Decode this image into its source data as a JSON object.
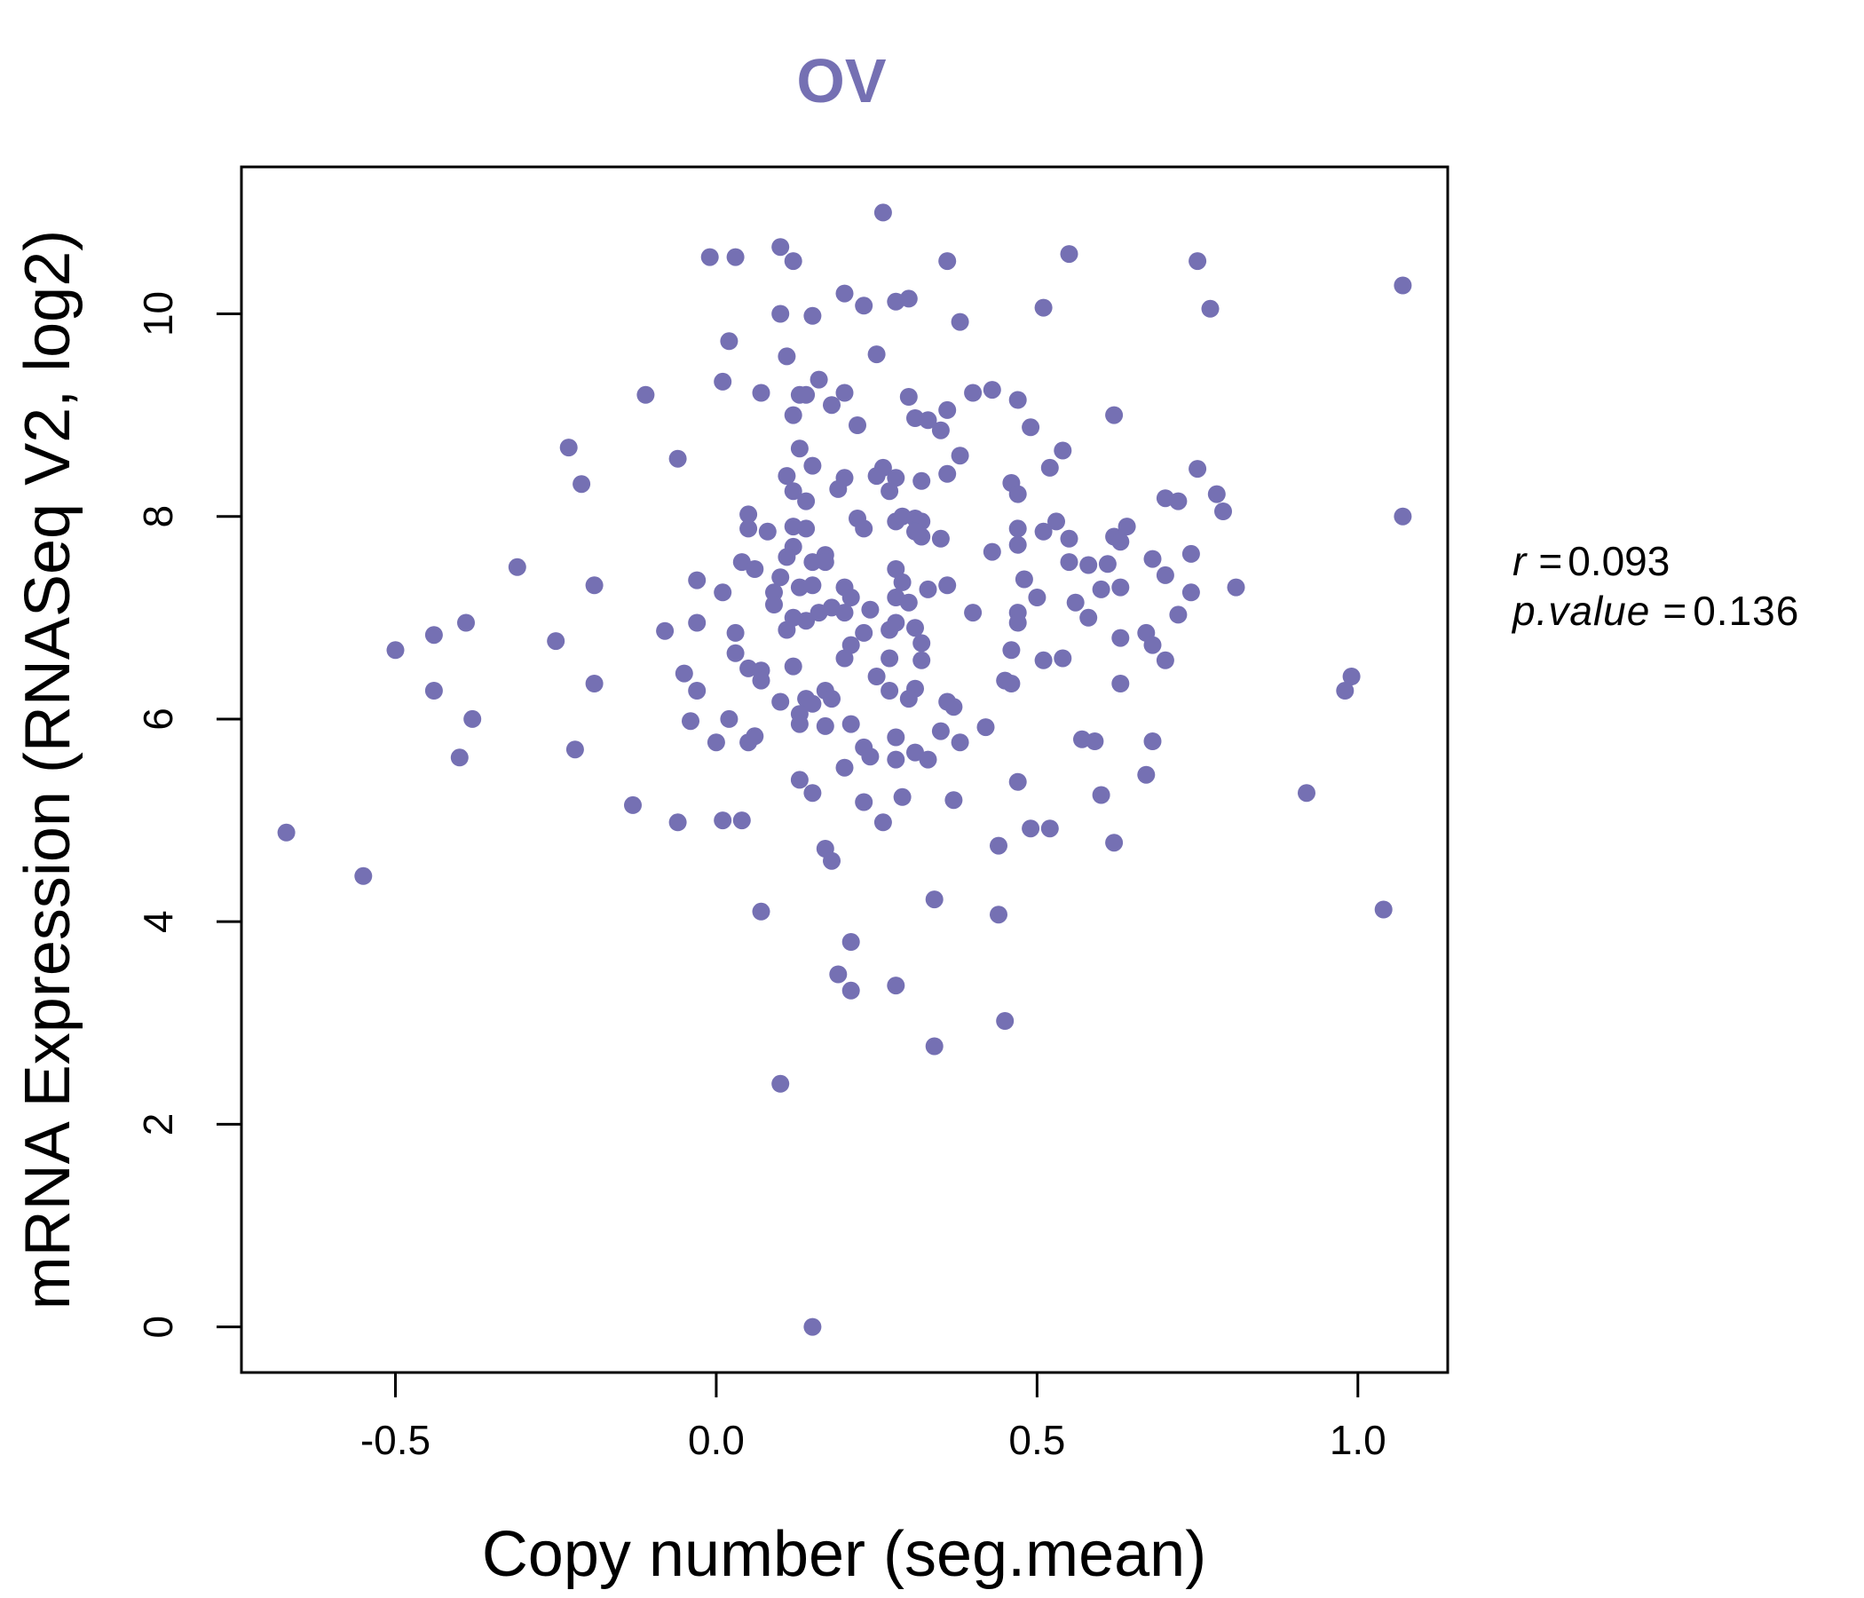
{
  "chart_data": {
    "type": "scatter",
    "title": "OV",
    "xlabel": "Copy number (seg.mean)",
    "ylabel": "mRNA Expression (RNASeq V2, log2)",
    "xlim": [
      -0.74,
      1.14
    ],
    "ylim": [
      -0.45,
      11.45
    ],
    "xticks": [
      -0.5,
      0.0,
      0.5,
      1.0
    ],
    "xtick_labels": [
      "-0.5",
      "0.0",
      "0.5",
      "1.0"
    ],
    "yticks": [
      0,
      2,
      4,
      6,
      8,
      10
    ],
    "ytick_labels": [
      "0",
      "2",
      "4",
      "6",
      "8",
      "10"
    ],
    "grid": false,
    "point_color": "#7570b3",
    "stats": {
      "r_symbol": "r",
      "r_value": "0.093",
      "p_symbol": "p.value",
      "p_value": "0.136"
    },
    "points": [
      [
        0.26,
        11.0
      ],
      [
        0.1,
        10.66
      ],
      [
        -0.01,
        10.56
      ],
      [
        0.03,
        10.56
      ],
      [
        0.12,
        10.52
      ],
      [
        0.36,
        10.52
      ],
      [
        0.55,
        10.59
      ],
      [
        0.75,
        10.52
      ],
      [
        1.07,
        10.28
      ],
      [
        0.2,
        10.2
      ],
      [
        0.28,
        10.12
      ],
      [
        0.3,
        10.15
      ],
      [
        0.23,
        10.08
      ],
      [
        0.51,
        10.06
      ],
      [
        0.77,
        10.05
      ],
      [
        0.1,
        10.0
      ],
      [
        0.15,
        9.98
      ],
      [
        0.38,
        9.92
      ],
      [
        0.02,
        9.73
      ],
      [
        0.25,
        9.6
      ],
      [
        0.11,
        9.58
      ],
      [
        0.01,
        9.33
      ],
      [
        0.16,
        9.35
      ],
      [
        -0.11,
        9.2
      ],
      [
        0.07,
        9.22
      ],
      [
        0.13,
        9.2
      ],
      [
        0.14,
        9.2
      ],
      [
        0.2,
        9.22
      ],
      [
        0.18,
        9.1
      ],
      [
        0.3,
        9.18
      ],
      [
        0.4,
        9.22
      ],
      [
        0.43,
        9.25
      ],
      [
        0.47,
        9.15
      ],
      [
        0.36,
        9.05
      ],
      [
        0.12,
        9.0
      ],
      [
        0.31,
        8.97
      ],
      [
        0.33,
        8.95
      ],
      [
        0.35,
        8.85
      ],
      [
        0.22,
        8.9
      ],
      [
        0.62,
        9.0
      ],
      [
        0.49,
        8.88
      ],
      [
        -0.23,
        8.68
      ],
      [
        0.13,
        8.67
      ],
      [
        0.38,
        8.6
      ],
      [
        0.54,
        8.65
      ],
      [
        -0.06,
        8.57
      ],
      [
        0.15,
        8.5
      ],
      [
        0.26,
        8.48
      ],
      [
        0.52,
        8.48
      ],
      [
        0.75,
        8.47
      ],
      [
        -0.21,
        8.32
      ],
      [
        0.11,
        8.4
      ],
      [
        0.2,
        8.38
      ],
      [
        0.25,
        8.4
      ],
      [
        0.28,
        8.38
      ],
      [
        0.32,
        8.35
      ],
      [
        0.36,
        8.42
      ],
      [
        0.46,
        8.33
      ],
      [
        0.12,
        8.25
      ],
      [
        0.14,
        8.15
      ],
      [
        0.19,
        8.27
      ],
      [
        0.27,
        8.25
      ],
      [
        0.47,
        8.22
      ],
      [
        0.7,
        8.18
      ],
      [
        0.72,
        8.15
      ],
      [
        0.78,
        8.22
      ],
      [
        0.79,
        8.05
      ],
      [
        1.07,
        8.0
      ],
      [
        0.05,
        8.02
      ],
      [
        0.22,
        7.98
      ],
      [
        0.28,
        7.95
      ],
      [
        0.29,
        8.0
      ],
      [
        0.31,
        7.98
      ],
      [
        0.32,
        7.95
      ],
      [
        0.05,
        7.88
      ],
      [
        0.08,
        7.85
      ],
      [
        0.12,
        7.9
      ],
      [
        0.14,
        7.88
      ],
      [
        0.23,
        7.88
      ],
      [
        0.31,
        7.85
      ],
      [
        0.32,
        7.8
      ],
      [
        0.35,
        7.78
      ],
      [
        0.47,
        7.88
      ],
      [
        0.51,
        7.85
      ],
      [
        0.53,
        7.95
      ],
      [
        0.55,
        7.78
      ],
      [
        0.62,
        7.8
      ],
      [
        0.64,
        7.9
      ],
      [
        0.63,
        7.75
      ],
      [
        0.12,
        7.7
      ],
      [
        0.11,
        7.6
      ],
      [
        0.15,
        7.55
      ],
      [
        0.17,
        7.62
      ],
      [
        0.17,
        7.55
      ],
      [
        0.43,
        7.65
      ],
      [
        0.47,
        7.72
      ],
      [
        0.55,
        7.55
      ],
      [
        0.58,
        7.52
      ],
      [
        0.61,
        7.53
      ],
      [
        0.68,
        7.58
      ],
      [
        0.74,
        7.63
      ],
      [
        0.04,
        7.55
      ],
      [
        0.06,
        7.48
      ],
      [
        0.1,
        7.4
      ],
      [
        0.28,
        7.48
      ],
      [
        0.7,
        7.42
      ],
      [
        -0.31,
        7.5
      ],
      [
        -0.19,
        7.32
      ],
      [
        -0.03,
        7.37
      ],
      [
        0.01,
        7.25
      ],
      [
        0.09,
        7.25
      ],
      [
        0.09,
        7.13
      ],
      [
        0.13,
        7.3
      ],
      [
        0.15,
        7.32
      ],
      [
        0.2,
        7.3
      ],
      [
        0.21,
        7.2
      ],
      [
        0.28,
        7.2
      ],
      [
        0.29,
        7.35
      ],
      [
        0.3,
        7.15
      ],
      [
        0.33,
        7.28
      ],
      [
        0.36,
        7.32
      ],
      [
        0.48,
        7.38
      ],
      [
        0.5,
        7.2
      ],
      [
        0.56,
        7.15
      ],
      [
        0.6,
        7.28
      ],
      [
        0.63,
        7.3
      ],
      [
        0.74,
        7.25
      ],
      [
        0.81,
        7.3
      ],
      [
        -0.39,
        6.95
      ],
      [
        -0.03,
        6.95
      ],
      [
        0.03,
        6.85
      ],
      [
        0.11,
        6.88
      ],
      [
        0.12,
        7.0
      ],
      [
        0.14,
        6.97
      ],
      [
        0.16,
        7.05
      ],
      [
        0.18,
        7.1
      ],
      [
        0.2,
        7.05
      ],
      [
        0.24,
        7.08
      ],
      [
        0.27,
        6.88
      ],
      [
        0.23,
        6.85
      ],
      [
        0.28,
        6.95
      ],
      [
        0.31,
        6.9
      ],
      [
        0.32,
        6.75
      ],
      [
        0.4,
        7.05
      ],
      [
        0.47,
        7.05
      ],
      [
        0.47,
        6.95
      ],
      [
        0.58,
        7.0
      ],
      [
        0.67,
        6.85
      ],
      [
        0.72,
        7.03
      ],
      [
        -0.44,
        6.83
      ],
      [
        -0.08,
        6.87
      ],
      [
        0.63,
        6.8
      ],
      [
        -0.5,
        6.68
      ],
      [
        -0.25,
        6.77
      ],
      [
        0.03,
        6.65
      ],
      [
        0.05,
        6.5
      ],
      [
        0.07,
        6.48
      ],
      [
        0.12,
        6.52
      ],
      [
        0.2,
        6.6
      ],
      [
        0.21,
        6.73
      ],
      [
        0.27,
        6.6
      ],
      [
        0.32,
        6.58
      ],
      [
        0.46,
        6.68
      ],
      [
        0.51,
        6.58
      ],
      [
        0.54,
        6.6
      ],
      [
        0.68,
        6.73
      ],
      [
        0.7,
        6.58
      ],
      [
        -0.05,
        6.45
      ],
      [
        0.07,
        6.38
      ],
      [
        0.25,
        6.42
      ],
      [
        0.27,
        6.28
      ],
      [
        0.31,
        6.3
      ],
      [
        0.45,
        6.38
      ],
      [
        0.46,
        6.35
      ],
      [
        0.63,
        6.35
      ],
      [
        0.99,
        6.42
      ],
      [
        0.98,
        6.28
      ],
      [
        -0.44,
        6.28
      ],
      [
        -0.19,
        6.35
      ],
      [
        -0.03,
        6.28
      ],
      [
        0.1,
        6.17
      ],
      [
        0.14,
        6.2
      ],
      [
        0.15,
        6.15
      ],
      [
        0.17,
        6.28
      ],
      [
        0.18,
        6.2
      ],
      [
        0.3,
        6.2
      ],
      [
        0.36,
        6.17
      ],
      [
        0.37,
        6.12
      ],
      [
        -0.38,
        6.0
      ],
      [
        -0.04,
        5.98
      ],
      [
        0.02,
        6.0
      ],
      [
        0.13,
        6.05
      ],
      [
        0.13,
        5.95
      ],
      [
        0.17,
        5.93
      ],
      [
        0.21,
        5.95
      ],
      [
        0.35,
        5.88
      ],
      [
        0.42,
        5.92
      ],
      [
        0.57,
        5.8
      ],
      [
        0.59,
        5.78
      ],
      [
        0.68,
        5.78
      ],
      [
        0.0,
        5.77
      ],
      [
        0.05,
        5.77
      ],
      [
        0.06,
        5.83
      ],
      [
        0.23,
        5.72
      ],
      [
        0.24,
        5.63
      ],
      [
        0.28,
        5.82
      ],
      [
        0.28,
        5.6
      ],
      [
        0.31,
        5.67
      ],
      [
        0.33,
        5.6
      ],
      [
        0.38,
        5.77
      ],
      [
        -0.22,
        5.7
      ],
      [
        -0.4,
        5.62
      ],
      [
        0.2,
        5.52
      ],
      [
        0.13,
        5.4
      ],
      [
        0.15,
        5.27
      ],
      [
        0.47,
        5.38
      ],
      [
        0.67,
        5.45
      ],
      [
        0.23,
        5.18
      ],
      [
        0.29,
        5.23
      ],
      [
        0.37,
        5.2
      ],
      [
        0.6,
        5.25
      ],
      [
        0.92,
        5.27
      ],
      [
        -0.13,
        5.15
      ],
      [
        -0.06,
        4.98
      ],
      [
        0.01,
        5.0
      ],
      [
        0.04,
        5.0
      ],
      [
        0.26,
        4.98
      ],
      [
        0.49,
        4.92
      ],
      [
        0.52,
        4.92
      ],
      [
        -0.67,
        4.88
      ],
      [
        0.17,
        4.72
      ],
      [
        0.18,
        4.6
      ],
      [
        0.44,
        4.75
      ],
      [
        0.62,
        4.78
      ],
      [
        -0.55,
        4.45
      ],
      [
        0.34,
        4.22
      ],
      [
        0.07,
        4.1
      ],
      [
        0.44,
        4.07
      ],
      [
        1.04,
        4.12
      ],
      [
        0.21,
        3.8
      ],
      [
        0.19,
        3.48
      ],
      [
        0.21,
        3.32
      ],
      [
        0.28,
        3.37
      ],
      [
        0.45,
        3.02
      ],
      [
        0.34,
        2.77
      ],
      [
        0.1,
        2.4
      ],
      [
        0.15,
        0.0
      ]
    ]
  }
}
